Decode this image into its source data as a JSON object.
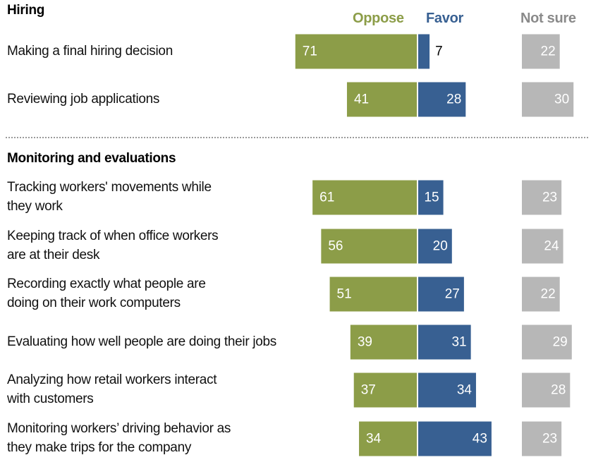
{
  "chart_data": {
    "type": "bar",
    "orientation": "horizontal-diverging",
    "title": "",
    "legend": [
      {
        "name": "Oppose",
        "color": "#8c9d48"
      },
      {
        "name": "Favor",
        "color": "#386092"
      },
      {
        "name": "Not sure",
        "color": "#b7b7b7"
      }
    ],
    "legend_text_colors": {
      "Oppose": "#8c9d48",
      "Favor": "#386092",
      "Not sure": "#8a8a8a"
    },
    "groups": [
      {
        "title": "Hiring",
        "rows": [
          {
            "label": "Making a final hiring decision",
            "oppose": 71,
            "favor": 7,
            "not_sure": 22
          },
          {
            "label": "Reviewing job applications",
            "oppose": 41,
            "favor": 28,
            "not_sure": 30
          }
        ]
      },
      {
        "title": "Monitoring and evaluations",
        "rows": [
          {
            "label": "Tracking workers' movements while they work",
            "oppose": 61,
            "favor": 15,
            "not_sure": 23
          },
          {
            "label": "Keeping track of when office workers are at their desk",
            "oppose": 56,
            "favor": 20,
            "not_sure": 24
          },
          {
            "label": "Recording exactly what people are doing on their work computers",
            "oppose": 51,
            "favor": 27,
            "not_sure": 22
          },
          {
            "label": "Evaluating how well people are doing their jobs",
            "oppose": 39,
            "favor": 31,
            "not_sure": 29
          },
          {
            "label": "Analyzing how retail workers interact with customers",
            "oppose": 37,
            "favor": 34,
            "not_sure": 28
          },
          {
            "label": "Monitoring workers’ driving behavior as they make trips for the company",
            "oppose": 34,
            "favor": 43,
            "not_sure": 23
          }
        ]
      }
    ],
    "xlim": [
      0,
      100
    ],
    "grid": false,
    "legend_position": "top-right"
  },
  "labels": {
    "group0_title": "Hiring",
    "group1_title": "Monitoring and evaluations",
    "legend_oppose": "Oppose",
    "legend_favor": "Favor",
    "legend_not_sure": "Not sure",
    "rows": [
      [
        "Making a final hiring decision"
      ],
      [
        "Reviewing job applications"
      ],
      [
        "Tracking workers' movements while",
        "they work"
      ],
      [
        "Keeping track of when office workers",
        "are at their desk"
      ],
      [
        "Recording exactly what people are",
        "doing on their work computers"
      ],
      [
        "Evaluating how well people are doing their jobs"
      ],
      [
        "Analyzing how retail workers interact",
        "with customers"
      ],
      [
        "Monitoring workers’ driving behavior as",
        "they make trips for the company"
      ]
    ]
  }
}
